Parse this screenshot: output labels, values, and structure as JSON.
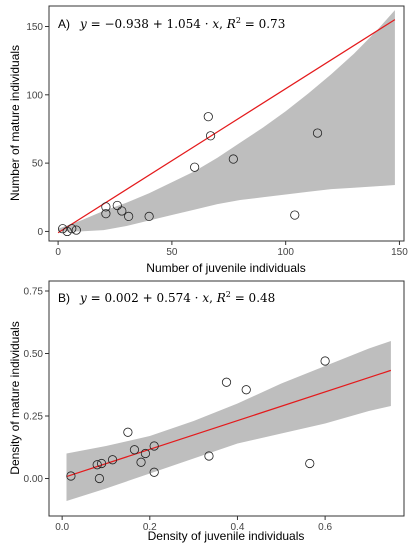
{
  "chart_data": [
    {
      "type": "scatter",
      "panel_label": "A)",
      "equation": {
        "y_var": "y",
        "rhs": " = −0.938 + 1.054 · ",
        "x_var": "x",
        "sep": ",  ",
        "r2_var": "R",
        "r2_sup": "2",
        "r2_val": " = 0.73"
      },
      "xlabel": "Number of juvenile individuals",
      "ylabel": "Number of mature individuals",
      "xlim": [
        -4,
        152
      ],
      "ylim": [
        -7,
        165
      ],
      "x_ticks": [
        0,
        50,
        100,
        150
      ],
      "x_tick_labels": [
        "0",
        "50",
        "100",
        "150"
      ],
      "y_ticks": [
        0,
        50,
        100,
        150
      ],
      "y_tick_labels": [
        "0",
        "50",
        "100",
        "150"
      ],
      "grid": false,
      "fit": {
        "intercept": -0.938,
        "slope": 1.054,
        "x_range": [
          0,
          148
        ],
        "color": "#e41a1c"
      },
      "ci": {
        "x": [
          0,
          10,
          20,
          30,
          40,
          50,
          60,
          70,
          80,
          90,
          100,
          110,
          120,
          130,
          140,
          148
        ],
        "upper": [
          2,
          8,
          15,
          21,
          28,
          36,
          44,
          54,
          65,
          76,
          88,
          101,
          115,
          130,
          147,
          162
        ],
        "lower": [
          0,
          0,
          1,
          4,
          8,
          12,
          16,
          20,
          23,
          25,
          27,
          29,
          31,
          32,
          33,
          34
        ],
        "color": "#bebebe"
      },
      "points": [
        {
          "x": 2,
          "y": 2
        },
        {
          "x": 4,
          "y": 0
        },
        {
          "x": 6,
          "y": 2
        },
        {
          "x": 8,
          "y": 1
        },
        {
          "x": 21,
          "y": 18
        },
        {
          "x": 21,
          "y": 13
        },
        {
          "x": 26,
          "y": 19
        },
        {
          "x": 28,
          "y": 15
        },
        {
          "x": 31,
          "y": 11
        },
        {
          "x": 40,
          "y": 11
        },
        {
          "x": 60,
          "y": 47
        },
        {
          "x": 66,
          "y": 84
        },
        {
          "x": 67,
          "y": 70
        },
        {
          "x": 77,
          "y": 53
        },
        {
          "x": 104,
          "y": 12
        },
        {
          "x": 114,
          "y": 72
        }
      ]
    },
    {
      "type": "scatter",
      "panel_label": "B)",
      "equation": {
        "y_var": "y",
        "rhs": " = 0.002 + 0.574 · ",
        "x_var": "x",
        "sep": ",  ",
        "r2_var": "R",
        "r2_sup": "2",
        "r2_val": " = 0.48"
      },
      "xlabel": "Density of juvenile individuals",
      "ylabel": "Density of mature individuals",
      "xlim": [
        -0.03,
        0.78
      ],
      "ylim": [
        -0.15,
        0.79
      ],
      "x_ticks": [
        0,
        0.2,
        0.4,
        0.6
      ],
      "x_tick_labels": [
        "0.0",
        "0.2",
        "0.4",
        "0.6"
      ],
      "y_ticks": [
        0,
        0.25,
        0.5,
        0.75
      ],
      "y_tick_labels": [
        "0.00",
        "0.25",
        "0.50",
        "0.75"
      ],
      "grid": false,
      "fit": {
        "intercept": 0.002,
        "slope": 0.574,
        "x_range": [
          0.01,
          0.75
        ],
        "color": "#e41a1c"
      },
      "ci": {
        "x": [
          0.01,
          0.1,
          0.2,
          0.3,
          0.4,
          0.5,
          0.6,
          0.7,
          0.75
        ],
        "upper": [
          0.1,
          0.13,
          0.17,
          0.23,
          0.3,
          0.38,
          0.45,
          0.52,
          0.55
        ],
        "lower": [
          -0.09,
          -0.04,
          0.02,
          0.08,
          0.14,
          0.18,
          0.22,
          0.27,
          0.29
        ],
        "color": "#bebebe"
      },
      "points": [
        {
          "x": 0.02,
          "y": 0.01
        },
        {
          "x": 0.08,
          "y": 0.055
        },
        {
          "x": 0.085,
          "y": 0.0
        },
        {
          "x": 0.09,
          "y": 0.06
        },
        {
          "x": 0.115,
          "y": 0.075
        },
        {
          "x": 0.15,
          "y": 0.185
        },
        {
          "x": 0.165,
          "y": 0.115
        },
        {
          "x": 0.18,
          "y": 0.065
        },
        {
          "x": 0.19,
          "y": 0.1
        },
        {
          "x": 0.21,
          "y": 0.13
        },
        {
          "x": 0.21,
          "y": 0.025
        },
        {
          "x": 0.335,
          "y": 0.09
        },
        {
          "x": 0.375,
          "y": 0.385
        },
        {
          "x": 0.42,
          "y": 0.355
        },
        {
          "x": 0.565,
          "y": 0.06
        },
        {
          "x": 0.6,
          "y": 0.47
        }
      ]
    }
  ]
}
